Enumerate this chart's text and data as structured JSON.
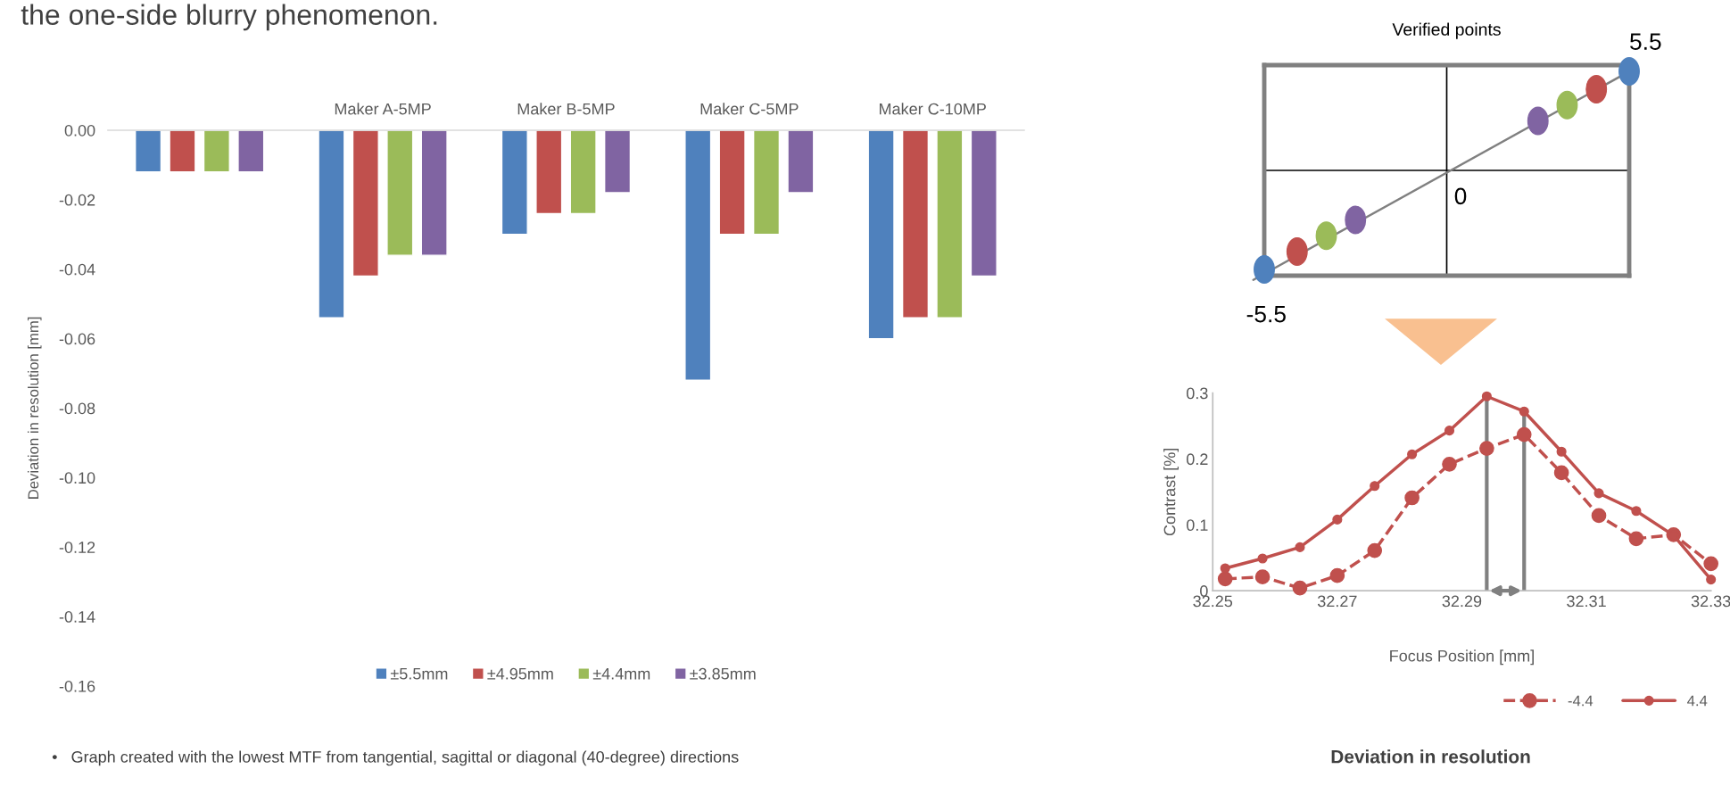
{
  "chart_data": [
    {
      "type": "bar",
      "title": "the one-side blurry phenomenon.",
      "ylabel": "Deviation in resolution [mm]",
      "categories": [
        null,
        "Maker A-5MP",
        "Maker B-5MP",
        "Maker C-5MP",
        "Maker C-10MP"
      ],
      "series": [
        {
          "name": "±5.5mm",
          "color": "#4f81bd",
          "values": [
            -0.012,
            -0.054,
            -0.03,
            -0.072,
            -0.06
          ]
        },
        {
          "name": "±4.95mm",
          "color": "#c0504d",
          "values": [
            -0.012,
            -0.042,
            -0.024,
            -0.03,
            -0.054
          ]
        },
        {
          "name": "±4.4mm",
          "color": "#9bbb59",
          "values": [
            -0.012,
            -0.036,
            -0.024,
            -0.03,
            -0.054
          ]
        },
        {
          "name": "±3.85mm",
          "color": "#8064a2",
          "values": [
            -0.012,
            -0.036,
            -0.018,
            -0.018,
            -0.042
          ]
        }
      ],
      "ylim": [
        -0.16,
        0
      ],
      "yticks": [
        {
          "value": -0.16,
          "label": "-0.16"
        },
        {
          "value": -0.14,
          "label": "-0.14"
        },
        {
          "value": -0.12,
          "label": "-0.12"
        },
        {
          "value": -0.1,
          "label": "-0.10"
        },
        {
          "value": -0.08,
          "label": "-0.08"
        },
        {
          "value": -0.06,
          "label": "-0.06"
        },
        {
          "value": -0.04,
          "label": "-0.04"
        },
        {
          "value": -0.02,
          "label": "-0.02"
        },
        {
          "value": 0,
          "label": "0.00"
        }
      ],
      "legend": "bottom",
      "annotations": [
        "•   Graph created with the lowest MTF from tangential, sagittal or diagonal (40-degree) directions"
      ]
    },
    {
      "type": "other",
      "title": "Verified points",
      "annotations": [
        "5.5",
        "0",
        "-5.5"
      ]
    },
    {
      "type": "line",
      "xlabel": "Focus Position [mm]",
      "ylabel": "Contrast [%]",
      "marker": "circle",
      "legend": "bottom right",
      "series": [
        {
          "name": "-4.4",
          "color": "#c0504d",
          "line_style": "dashed",
          "x": [
            32.252,
            32.258,
            32.264,
            32.27,
            32.276,
            32.282,
            32.288,
            32.294,
            32.3,
            32.306,
            32.312,
            32.318,
            32.324,
            32.33
          ],
          "values": [
            0.018,
            0.021,
            0.004,
            0.023,
            0.061,
            0.141,
            0.192,
            0.216,
            0.237,
            0.179,
            0.114,
            0.079,
            0.085,
            0.041
          ]
        },
        {
          "name": "4.4",
          "color": "#c0504d",
          "line_style": "solid",
          "x": [
            32.252,
            32.258,
            32.264,
            32.27,
            32.276,
            32.282,
            32.288,
            32.294,
            32.3,
            32.306,
            32.312,
            32.318,
            32.324,
            32.33
          ],
          "values": [
            0.034,
            0.049,
            0.066,
            0.108,
            0.159,
            0.207,
            0.243,
            0.295,
            0.272,
            0.211,
            0.148,
            0.121,
            0.084,
            0.017
          ]
        }
      ],
      "xlim": [
        32.25,
        32.33
      ],
      "xticks": [
        32.25,
        32.27,
        32.29,
        32.31,
        32.33
      ],
      "ylim": [
        0,
        0.3
      ],
      "yticks": [
        0,
        0.1,
        0.2,
        0.3
      ],
      "ref_lines": [
        {
          "axis": "x",
          "value": 32.294,
          "color": "#808080"
        },
        {
          "axis": "x",
          "value": 32.3,
          "color": "#808080"
        }
      ],
      "annotations": [
        "Deviation in resolution"
      ]
    }
  ]
}
